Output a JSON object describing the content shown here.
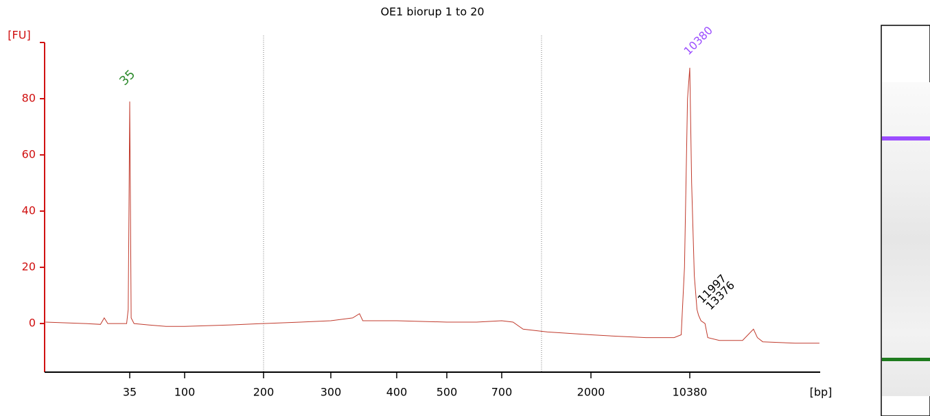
{
  "chart_data": {
    "type": "line",
    "title": "OE1 biorup 1 to 20",
    "ylabel": "[FU]",
    "xlabel": "[bp]",
    "color": "#c0392b",
    "x": [
      7,
      15,
      20,
      21.5,
      23,
      30,
      33,
      34,
      34.5,
      35,
      35.5,
      36,
      38,
      50,
      70,
      100,
      150,
      200,
      250,
      300,
      330,
      340,
      345,
      400,
      500,
      600,
      700,
      800,
      900,
      1200,
      2000,
      3000,
      5000,
      8000,
      9000,
      9500,
      10000,
      10380,
      10700,
      11200,
      11700,
      11997,
      12500,
      13376,
      14000,
      17000,
      25000,
      30000,
      32000,
      35000,
      60000,
      90000
    ],
    "values": [
      0.5,
      0,
      -0.3,
      2,
      0,
      0,
      0,
      5,
      40,
      79,
      40,
      2,
      0,
      -0.5,
      -1,
      -1,
      -0.5,
      0,
      0.5,
      1,
      2,
      3.5,
      1,
      1,
      0.5,
      0.5,
      1,
      0.5,
      -2,
      -3,
      -4,
      -4.5,
      -5,
      -5,
      -4,
      20,
      80,
      91,
      50,
      17,
      5,
      3,
      1,
      0,
      -5,
      -6,
      -6,
      -2,
      -5,
      -6.5,
      -7,
      -7
    ],
    "xticks": [
      35,
      100,
      200,
      300,
      400,
      500,
      700,
      2000,
      10380
    ],
    "ylim": [
      -17.3,
      100
    ],
    "yticks": [
      0,
      20,
      40,
      60,
      80
    ],
    "annotations": [
      {
        "text": "35",
        "color": "#2e8b2e"
      },
      {
        "text": "10380",
        "color": "#9b4dff"
      },
      {
        "text": "11997",
        "color": "#000000"
      },
      {
        "text": "13376",
        "color": "#000000"
      }
    ]
  }
}
